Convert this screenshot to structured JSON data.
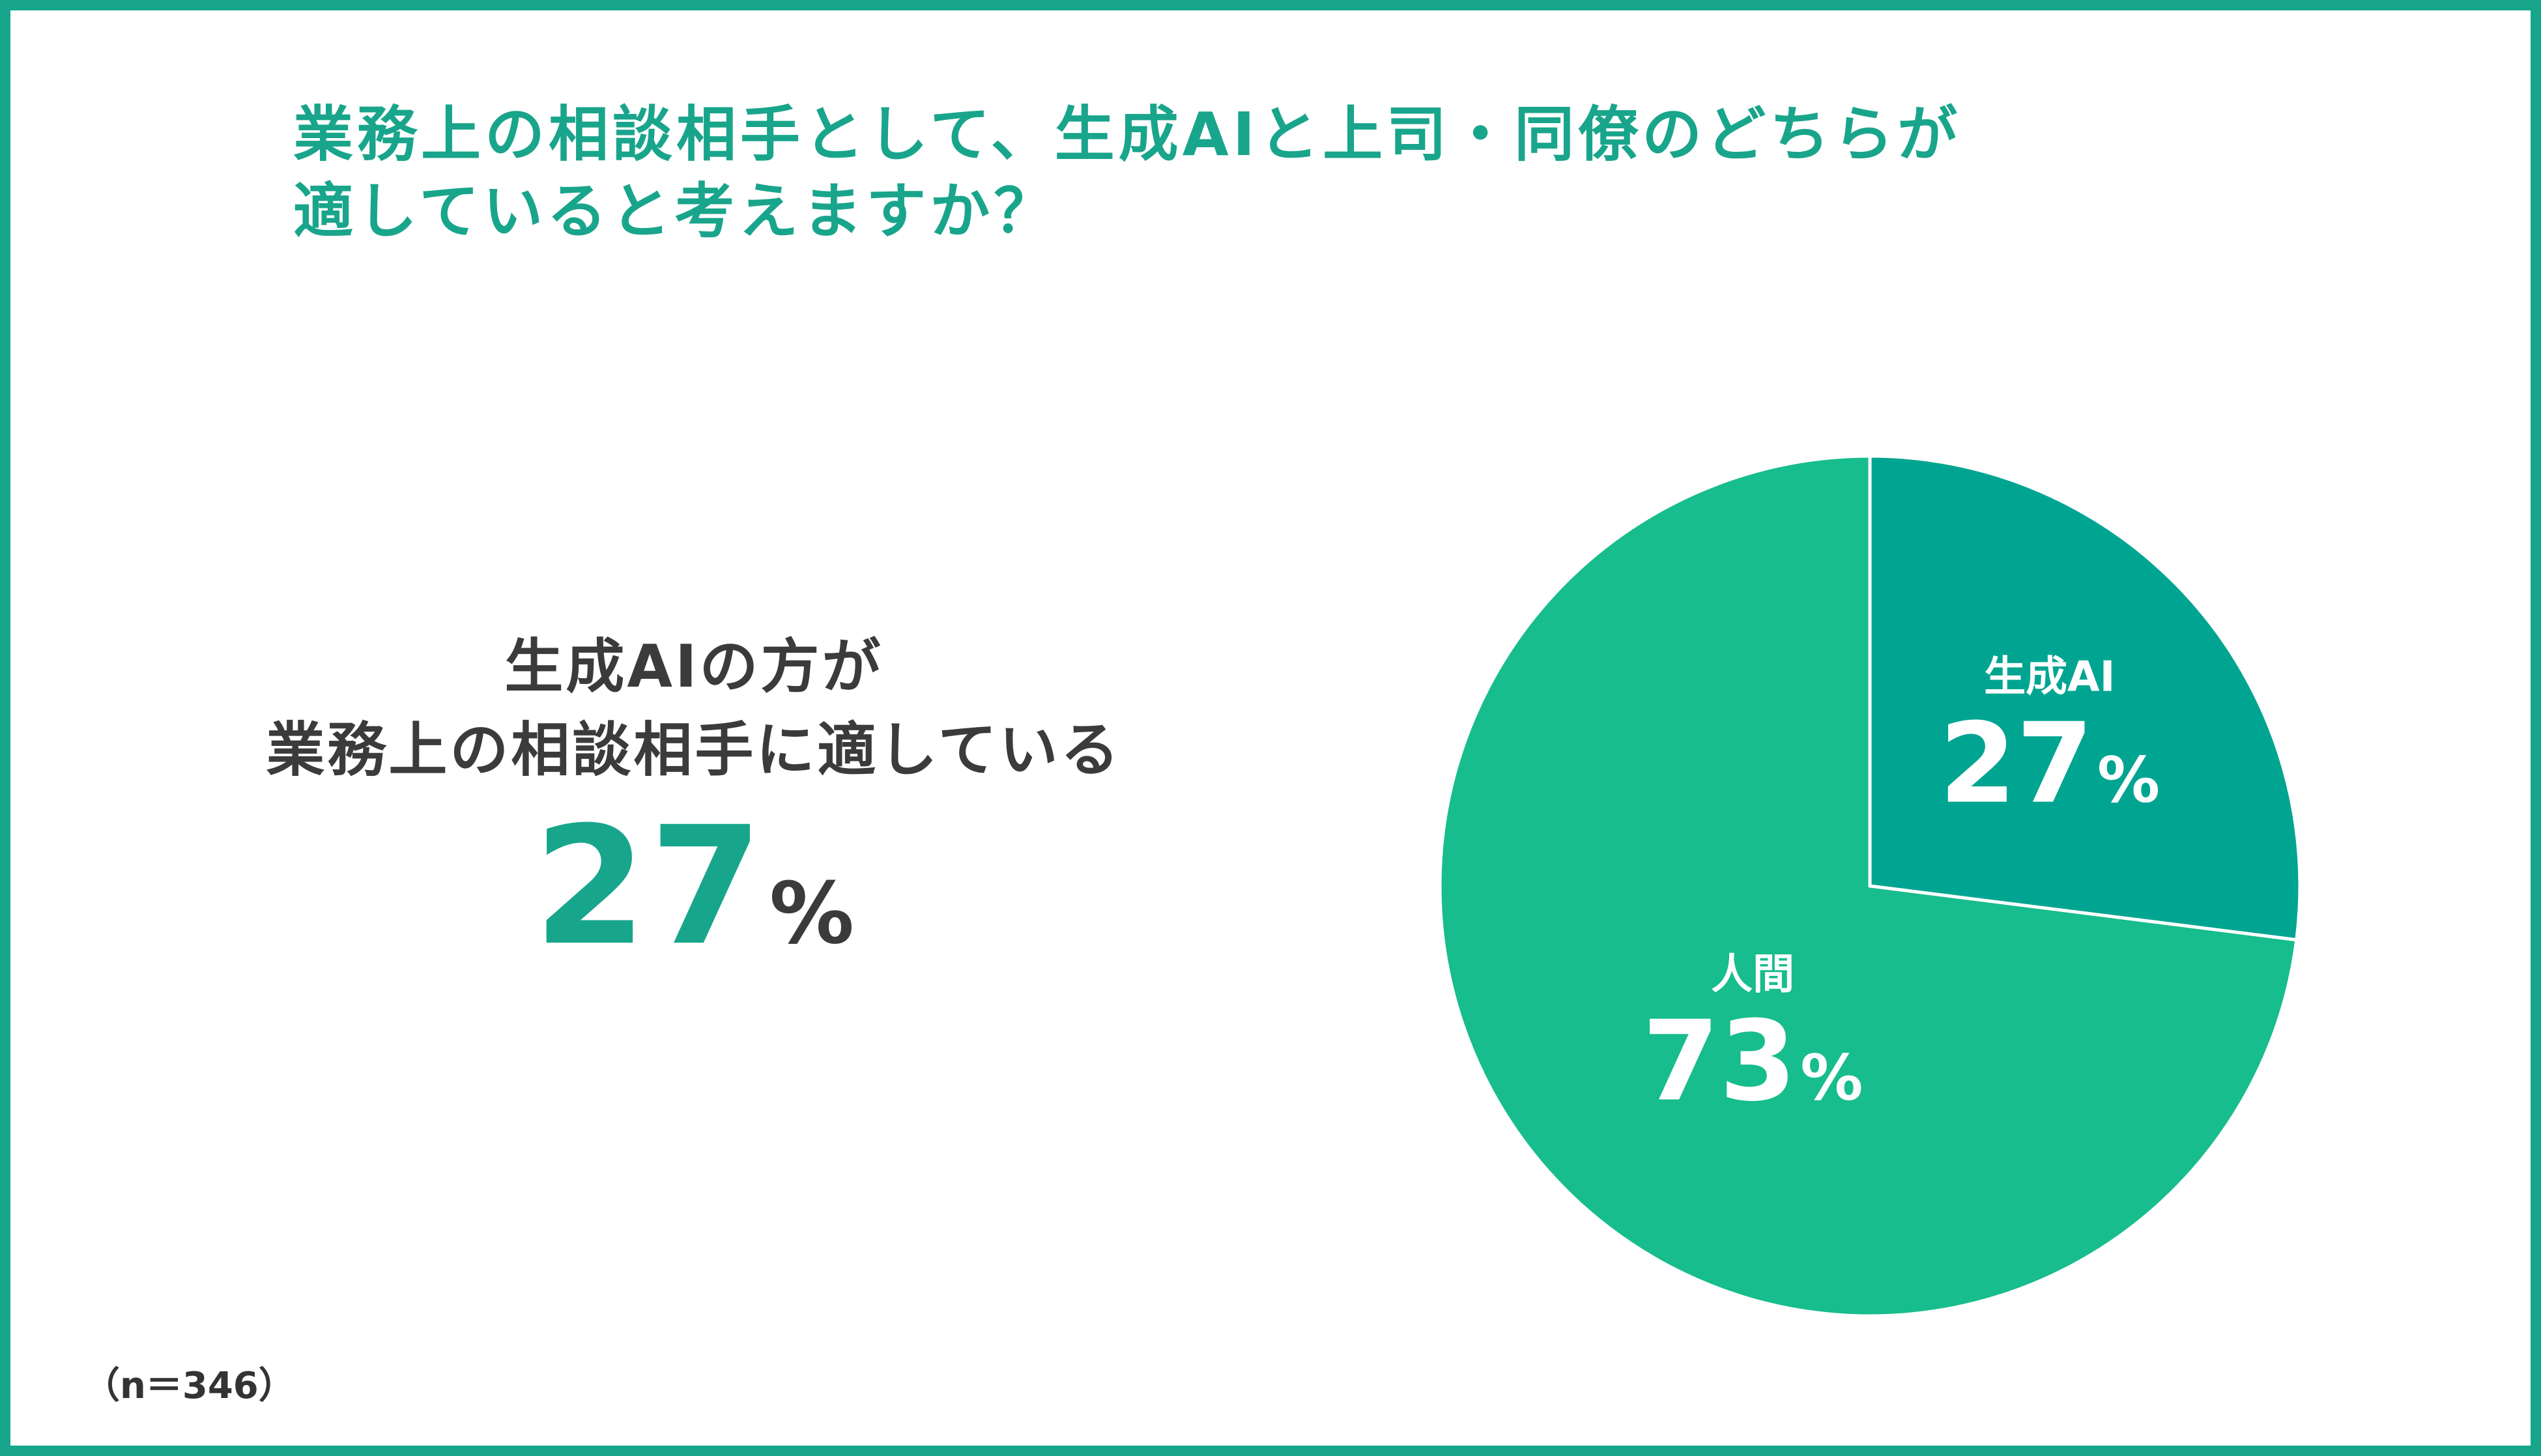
{
  "title": {
    "line1": "業務上の相談相手として、生成AIと上司・同僚のどちらが",
    "line2": "適していると考えますか？"
  },
  "summary": {
    "line1": "生成AIの方が",
    "line2": "業務上の相談相手に適している",
    "value": "27",
    "unit": "%"
  },
  "note": "（n＝346）",
  "colors": {
    "accent": "#17a68b",
    "slice_ai": "#00a591",
    "slice_human": "#17bd8c",
    "text_dark": "#3b3b3b"
  },
  "chart_data": {
    "type": "pie",
    "title": "業務上の相談相手として、生成AIと上司・同僚のどちらが適していると考えますか？",
    "slices": [
      {
        "label": "生成AI",
        "value": 27,
        "display": "27",
        "unit": "%",
        "color": "#00a591"
      },
      {
        "label": "人間",
        "value": 73,
        "display": "73",
        "unit": "%",
        "color": "#17bd8c"
      }
    ],
    "start_angle": "12 o'clock",
    "direction": "clockwise",
    "n": 346
  }
}
